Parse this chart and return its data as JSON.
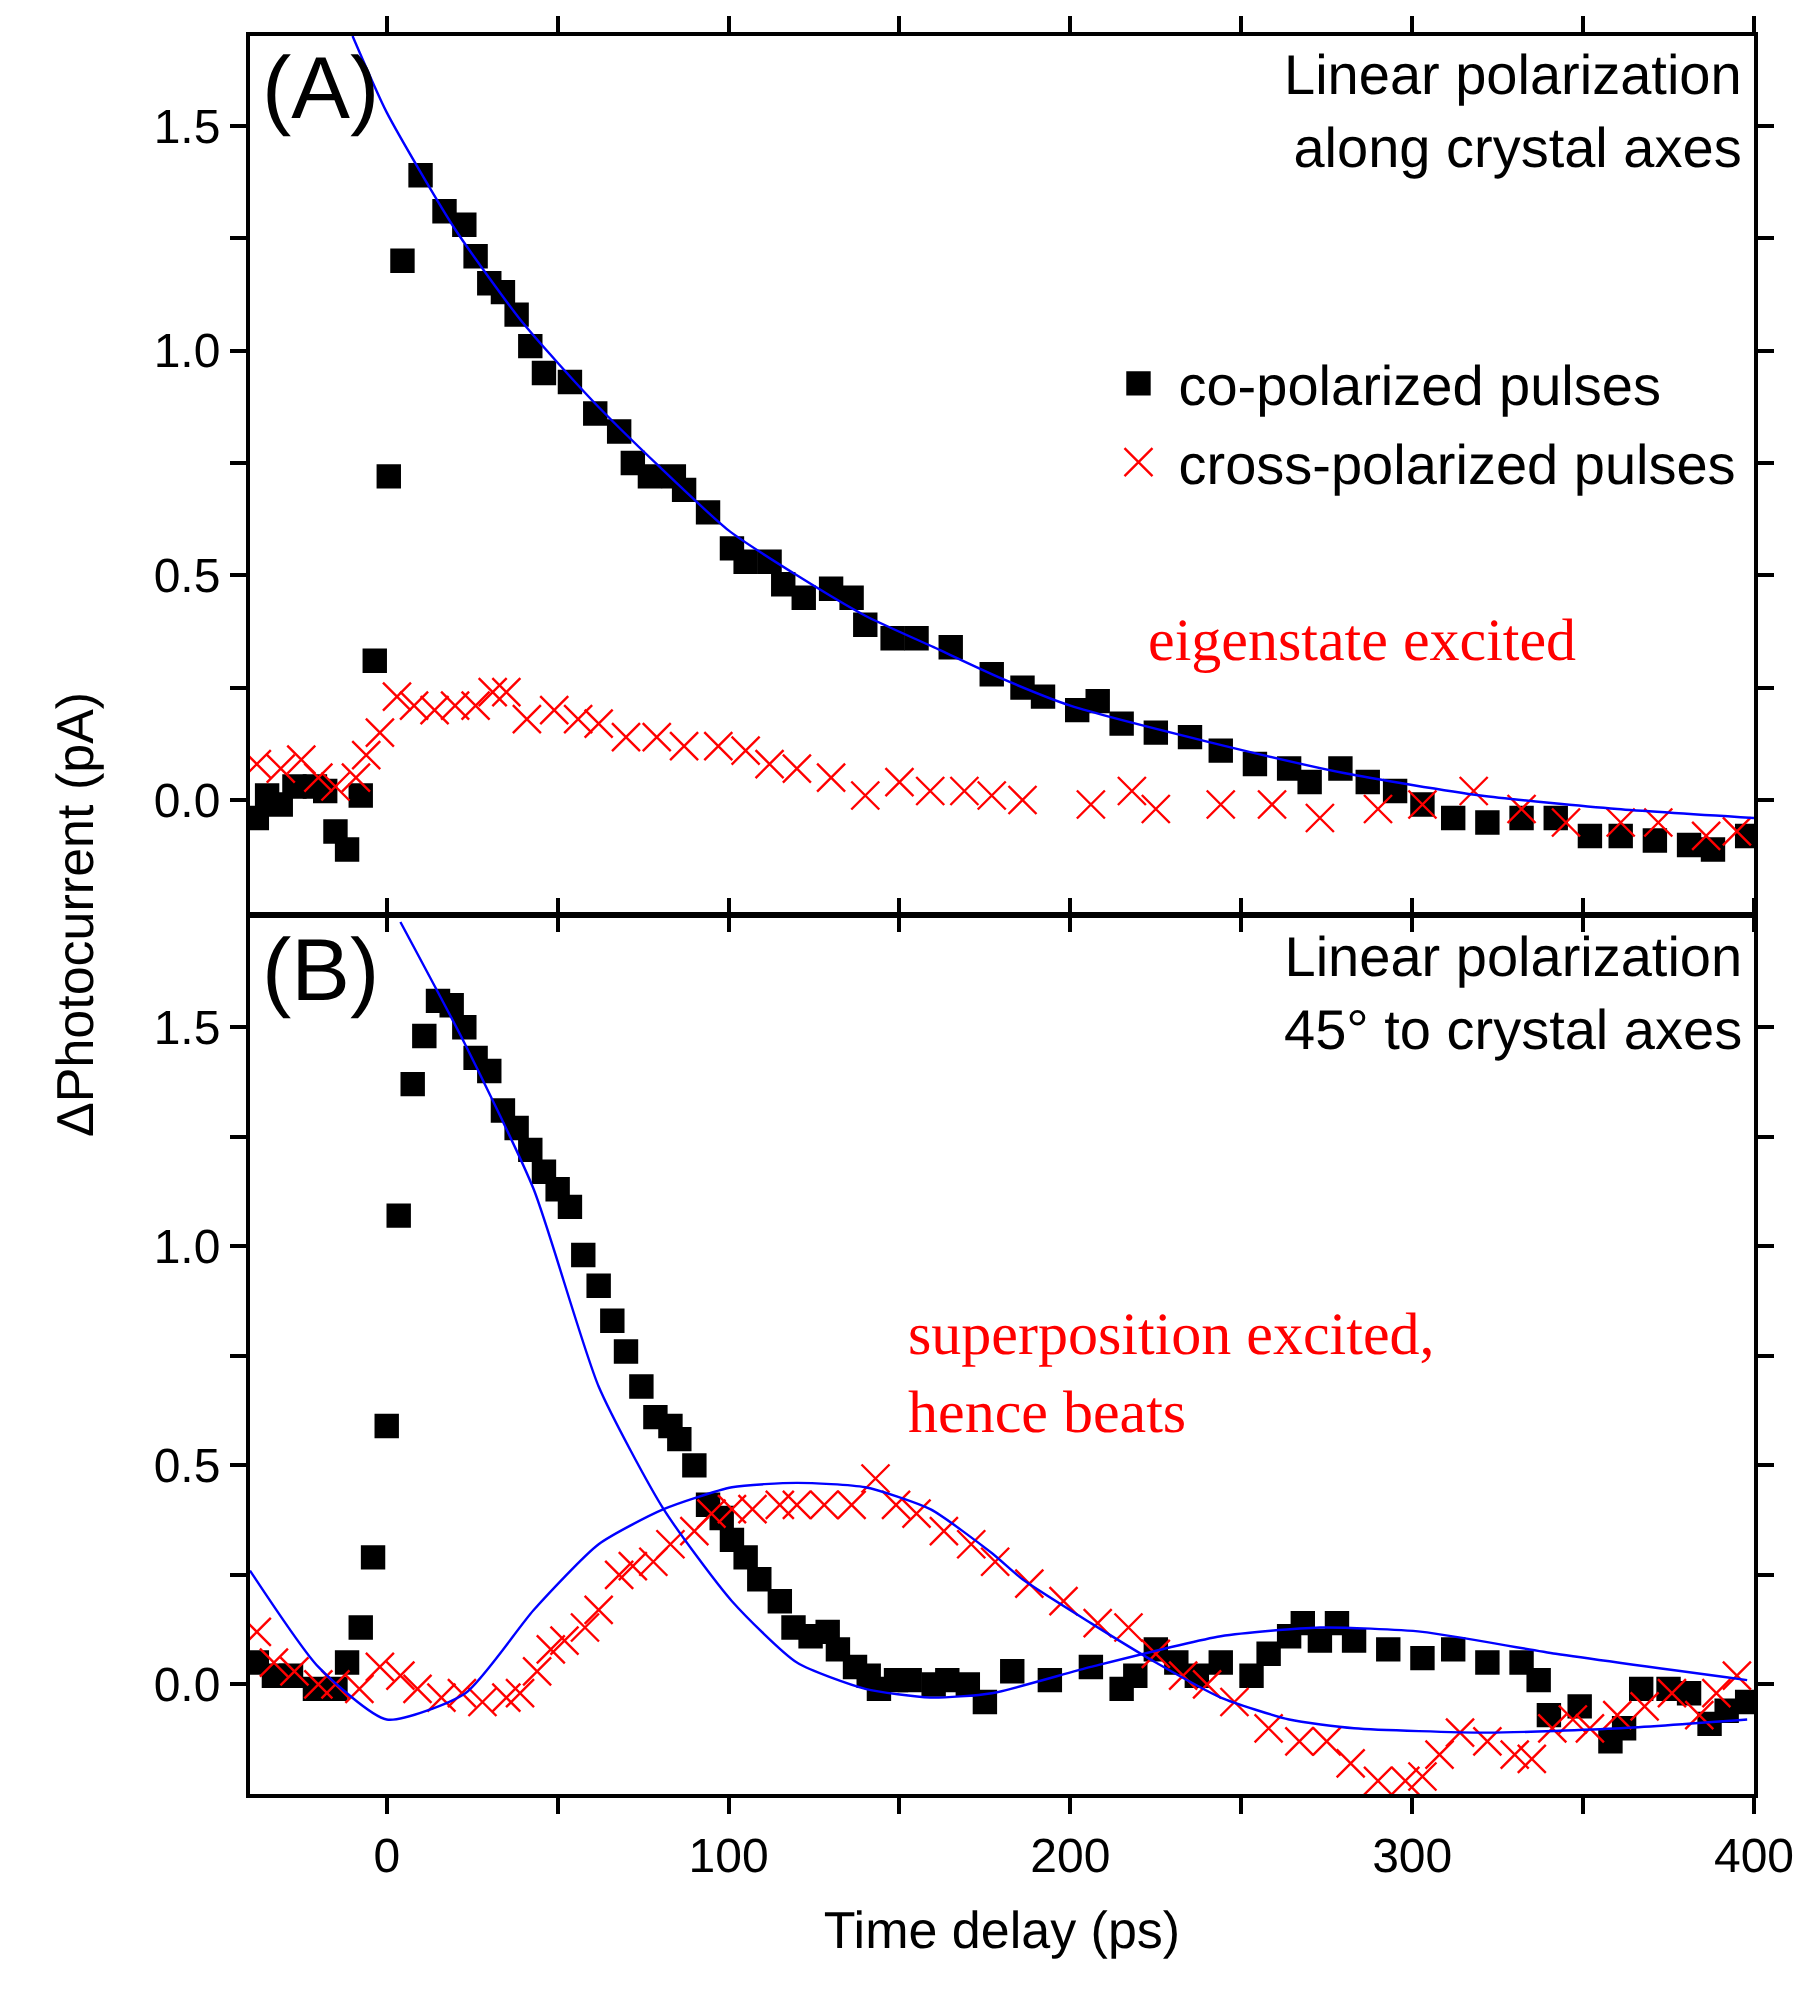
{
  "chart_data": [
    {
      "type": "scatter",
      "ylabel": "ΔPhotocurrent (pA)",
      "xlim": [
        -40,
        400
      ],
      "xticks": [
        0,
        {
          "value": 50,
          "label": null
        },
        100,
        {
          "value": 150,
          "label": null
        },
        200,
        {
          "value": 250,
          "label": null
        },
        300,
        {
          "value": 350,
          "label": null
        },
        400
      ],
      "ylim": [
        -0.25,
        1.7
      ],
      "yticks": [
        {
          "value": 0,
          "label": "0.0"
        },
        {
          "value": 0.25,
          "label": null
        },
        {
          "value": 0.5,
          "label": "0.5"
        },
        {
          "value": 0.75,
          "label": null
        },
        {
          "value": 1,
          "label": "1.0"
        },
        {
          "value": 1.25,
          "label": null
        },
        {
          "value": 1.5,
          "label": "1.5"
        }
      ],
      "tick_labels": "y",
      "legend": "right",
      "annotations": [
        "(A)",
        "Linear polarization\nalong crystal axes",
        "eigenstate excited"
      ],
      "series": [
        {
          "name": "co-polarized pulses",
          "color": "#000000",
          "marker": "square",
          "x": [
            -38,
            -35,
            -31,
            -27,
            -21,
            -18,
            -15,
            -11.6,
            -7.6,
            -3.5,
            0.6,
            4.6,
            9.9,
            16.9,
            22.7,
            26,
            30,
            34,
            38,
            42,
            46,
            53.6,
            61,
            68,
            72,
            77,
            84,
            87,
            94,
            101,
            105,
            112,
            116,
            122,
            130,
            136,
            140,
            148,
            155,
            165,
            177,
            186,
            192,
            202,
            208,
            215,
            225,
            235,
            244,
            254,
            264,
            270,
            279,
            287,
            295,
            303,
            312,
            322,
            332,
            342,
            352,
            361,
            371,
            381,
            388,
            398
          ],
          "values": [
            -0.04,
            0.01,
            -0.01,
            0.03,
            0.03,
            0.02,
            -0.07,
            -0.11,
            0.01,
            0.31,
            0.72,
            1.2,
            1.39,
            1.31,
            1.28,
            1.21,
            1.15,
            1.13,
            1.08,
            1.01,
            0.95,
            0.93,
            0.86,
            0.82,
            0.75,
            0.72,
            0.72,
            0.69,
            0.64,
            0.56,
            0.53,
            0.53,
            0.48,
            0.45,
            0.47,
            0.45,
            0.39,
            0.36,
            0.36,
            0.34,
            0.28,
            0.25,
            0.23,
            0.2,
            0.22,
            0.17,
            0.15,
            0.14,
            0.11,
            0.08,
            0.07,
            0.04,
            0.07,
            0.04,
            0.02,
            -0.01,
            -0.04,
            -0.05,
            -0.04,
            -0.04,
            -0.08,
            -0.08,
            -0.09,
            -0.1,
            -0.11,
            -0.08
          ]
        },
        {
          "name": "cross-polarized pulses",
          "color": "#ff0000",
          "marker": "cross",
          "x": [
            -38,
            -31,
            -25,
            -20,
            -15,
            -9,
            -6,
            -2,
            3,
            8,
            14,
            20,
            26,
            31,
            35,
            41,
            49,
            56,
            62,
            70,
            79,
            87,
            97,
            105,
            112,
            120,
            130,
            140,
            150,
            159,
            169,
            177,
            186,
            206,
            218,
            225,
            244,
            259,
            273,
            290,
            303,
            318,
            332,
            345,
            361,
            372,
            386,
            395
          ],
          "values": [
            0.08,
            0.07,
            0.09,
            0.05,
            0.03,
            0.05,
            0.1,
            0.15,
            0.23,
            0.21,
            0.2,
            0.21,
            0.21,
            0.24,
            0.24,
            0.18,
            0.2,
            0.18,
            0.17,
            0.14,
            0.14,
            0.12,
            0.12,
            0.11,
            0.08,
            0.07,
            0.05,
            0.01,
            0.04,
            0.02,
            0.02,
            0.01,
            0,
            -0.01,
            0.02,
            -0.02,
            -0.01,
            -0.01,
            -0.04,
            -0.02,
            -0.01,
            0.02,
            -0.02,
            -0.05,
            -0.05,
            -0.05,
            -0.08,
            -0.07
          ]
        },
        {
          "type": "line",
          "color": "#0000ff",
          "marker": "none",
          "x": [
            -10,
            0,
            20,
            40,
            60,
            80,
            100,
            120,
            140,
            160,
            180,
            200,
            240,
            280,
            320,
            360,
            400
          ],
          "values": [
            1.7,
            1.53,
            1.27,
            1.06,
            0.89,
            0.74,
            0.6,
            0.5,
            0.41,
            0.34,
            0.27,
            0.21,
            0.13,
            0.06,
            0.01,
            -0.02,
            -0.04
          ]
        }
      ]
    },
    {
      "type": "scatter",
      "xlabel": "Time delay (ps)",
      "xlim": [
        -40,
        400
      ],
      "xticks": [
        0,
        {
          "value": 50,
          "label": null
        },
        100,
        {
          "value": 150,
          "label": null
        },
        200,
        {
          "value": 250,
          "label": null
        },
        300,
        {
          "value": 350,
          "label": null
        },
        400
      ],
      "ylim": [
        -0.25,
        1.75
      ],
      "yticks": [
        {
          "value": 0,
          "label": "0.0"
        },
        {
          "value": 0.25,
          "label": null
        },
        {
          "value": 0.5,
          "label": "0.5"
        },
        {
          "value": 0.75,
          "label": null
        },
        {
          "value": 1,
          "label": "1.0"
        },
        {
          "value": 1.25,
          "label": null
        },
        {
          "value": 1.5,
          "label": "1.5"
        }
      ],
      "annotations": [
        "(B)",
        "Linear polarization\n45° to crystal axes",
        "superposition excited,\nhence beats"
      ],
      "series": [
        {
          "color": "#000000",
          "marker": "square",
          "x": [
            -38,
            -33,
            -28,
            -21,
            -15,
            -11.6,
            -7.6,
            -4,
            0,
            3.5,
            7.6,
            11,
            15,
            19,
            22.7,
            26,
            30,
            34,
            38,
            42,
            46,
            50,
            53.6,
            57.5,
            62,
            66,
            70,
            74.5,
            78.6,
            83,
            85.6,
            90,
            94,
            98,
            101,
            105,
            109,
            115,
            119,
            124,
            129,
            132,
            137,
            141,
            144,
            149,
            153,
            160,
            164,
            170,
            175,
            183,
            194,
            206,
            215,
            219,
            225,
            231,
            237,
            244,
            253,
            258,
            264,
            268,
            273,
            278,
            283,
            293,
            303,
            312,
            322,
            332,
            337,
            340,
            349,
            358,
            362,
            367,
            375,
            381,
            387,
            392,
            398
          ],
          "values": [
            0.05,
            0.02,
            0.02,
            -0.01,
            -0.01,
            0.05,
            0.13,
            0.29,
            0.59,
            1.07,
            1.37,
            1.48,
            1.56,
            1.55,
            1.5,
            1.43,
            1.4,
            1.31,
            1.27,
            1.22,
            1.17,
            1.13,
            1.09,
            0.98,
            0.91,
            0.83,
            0.76,
            0.68,
            0.61,
            0.59,
            0.56,
            0.5,
            0.41,
            0.38,
            0.33,
            0.29,
            0.24,
            0.19,
            0.13,
            0.11,
            0.12,
            0.08,
            0.04,
            0.02,
            -0.01,
            0.01,
            0.01,
            0,
            0.01,
            0,
            -0.04,
            0.03,
            0.01,
            0.04,
            -0.01,
            0.02,
            0.08,
            0.05,
            0.02,
            0.05,
            0.02,
            0.07,
            0.11,
            0.14,
            0.1,
            0.14,
            0.1,
            0.08,
            0.06,
            0.08,
            0.05,
            0.05,
            0.01,
            -0.07,
            -0.05,
            -0.13,
            -0.1,
            -0.01,
            -0.01,
            -0.02,
            -0.09,
            -0.06,
            -0.04
          ]
        },
        {
          "color": "#ff0000",
          "marker": "cross",
          "x": [
            -38,
            -33,
            -27,
            -20,
            -15,
            -8,
            -2,
            4,
            9,
            16,
            22,
            28,
            35,
            39,
            44,
            48,
            52,
            58,
            62,
            68,
            72,
            78,
            83,
            90,
            95,
            101,
            107,
            115,
            120,
            128,
            136,
            143,
            149,
            155,
            163,
            171,
            178,
            188,
            198,
            208,
            217,
            225,
            233,
            240,
            248,
            258,
            267,
            275,
            282,
            290,
            298,
            303,
            308,
            314,
            322,
            330,
            335,
            341,
            347,
            352,
            360,
            368,
            376,
            384,
            389,
            395
          ],
          "values": [
            0.12,
            0.05,
            0.03,
            0,
            0,
            -0.01,
            0.04,
            0.02,
            -0.01,
            -0.03,
            -0.02,
            -0.04,
            -0.03,
            -0.02,
            0.03,
            0.08,
            0.1,
            0.13,
            0.17,
            0.25,
            0.27,
            0.28,
            0.32,
            0.35,
            0.39,
            0.4,
            0.4,
            0.41,
            0.41,
            0.41,
            0.41,
            0.47,
            0.41,
            0.39,
            0.35,
            0.32,
            0.28,
            0.23,
            0.19,
            0.14,
            0.13,
            0.07,
            0.02,
            0,
            -0.04,
            -0.1,
            -0.13,
            -0.13,
            -0.18,
            -0.22,
            -0.22,
            -0.21,
            -0.16,
            -0.11,
            -0.13,
            -0.16,
            -0.17,
            -0.1,
            -0.08,
            -0.1,
            -0.07,
            -0.05,
            -0.02,
            -0.07,
            -0.02,
            0.02
          ]
        },
        {
          "type": "line",
          "color": "#0000ff",
          "marker": "none",
          "x": [
            4,
            23,
            43,
            62,
            81,
            101,
            120,
            140,
            159,
            177,
            206,
            244,
            273,
            303,
            342,
            398
          ],
          "values": [
            1.74,
            1.46,
            1.13,
            0.68,
            0.4,
            0.19,
            0.05,
            -0.01,
            -0.03,
            -0.02,
            0.04,
            0.11,
            0.13,
            0.12,
            0.07,
            0.01
          ]
        },
        {
          "type": "line",
          "color": "#0000ff",
          "marker": "none",
          "x": [
            -40,
            -20,
            0,
            23,
            43,
            62,
            81,
            101,
            120,
            140,
            159,
            177,
            186,
            206,
            225,
            244,
            264,
            283,
            322,
            361,
            398
          ],
          "values": [
            0.26,
            0.04,
            -0.08,
            -0.02,
            0.17,
            0.32,
            0.4,
            0.45,
            0.46,
            0.45,
            0.4,
            0.3,
            0.24,
            0.14,
            0.05,
            -0.03,
            -0.08,
            -0.1,
            -0.11,
            -0.1,
            -0.08
          ]
        }
      ]
    }
  ]
}
